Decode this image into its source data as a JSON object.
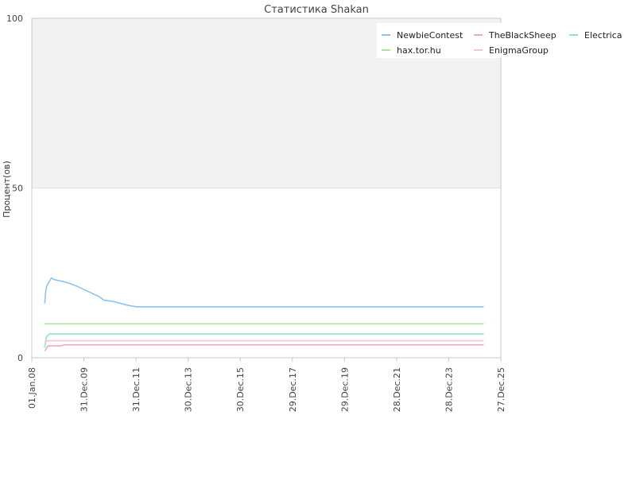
{
  "chart_data": {
    "type": "line",
    "title": "Статистика Shakan",
    "ylabel": "Процент(ов)",
    "xlabel": "",
    "ylim": [
      0,
      100
    ],
    "yticks": [
      "0",
      "50",
      "100"
    ],
    "shaded_band": [
      50,
      100
    ],
    "xlim": [
      "2008-01-01",
      "2025-12-27"
    ],
    "xticks": [
      {
        "date": "2008-01-01",
        "label": "01.Jan.08"
      },
      {
        "date": "2009-12-31",
        "label": "31.Dec.09"
      },
      {
        "date": "2011-12-31",
        "label": "31.Dec.11"
      },
      {
        "date": "2013-12-30",
        "label": "30.Dec.13"
      },
      {
        "date": "2015-12-30",
        "label": "30.Dec.15"
      },
      {
        "date": "2017-12-29",
        "label": "29.Dec.17"
      },
      {
        "date": "2019-12-29",
        "label": "29.Dec.19"
      },
      {
        "date": "2021-12-28",
        "label": "28.Dec.21"
      },
      {
        "date": "2023-12-28",
        "label": "28.Dec.23"
      },
      {
        "date": "2025-12-27",
        "label": "27.Dec.25"
      }
    ],
    "legend_position": "top-right",
    "grid": true,
    "series": [
      {
        "name": "NewbieContest",
        "color": "#8cc3f2",
        "points": [
          [
            "2008-07-01",
            16
          ],
          [
            "2008-07-10",
            19
          ],
          [
            "2008-07-25",
            21
          ],
          [
            "2008-08-20",
            22
          ],
          [
            "2008-10-01",
            23.5
          ],
          [
            "2008-11-15",
            23
          ],
          [
            "2009-03-01",
            22.5
          ],
          [
            "2009-06-01",
            22
          ],
          [
            "2009-10-01",
            21
          ],
          [
            "2010-03-01",
            19.5
          ],
          [
            "2010-08-01",
            18
          ],
          [
            "2010-10-01",
            17
          ],
          [
            "2011-03-01",
            16.5
          ],
          [
            "2011-09-01",
            15.5
          ],
          [
            "2011-12-31",
            15
          ],
          [
            "2025-05-01",
            15
          ]
        ]
      },
      {
        "name": "TheBlackSheep",
        "color": "#f2a7c3",
        "points": [
          [
            "2008-07-01",
            2
          ],
          [
            "2008-08-15",
            3.5
          ],
          [
            "2009-02-01",
            3.5
          ],
          [
            "2009-04-01",
            3.8
          ],
          [
            "2025-05-01",
            3.8
          ]
        ]
      },
      {
        "name": "Electrica",
        "color": "#8ee3c8",
        "points": [
          [
            "2008-07-01",
            3
          ],
          [
            "2008-07-20",
            6
          ],
          [
            "2008-09-01",
            7
          ],
          [
            "2025-05-01",
            7
          ]
        ]
      },
      {
        "name": "hax.tor.hu",
        "color": "#a9e8a0",
        "points": [
          [
            "2008-07-01",
            10
          ],
          [
            "2025-05-01",
            10
          ]
        ]
      },
      {
        "name": "EnigmaGroup",
        "color": "#f7c5d4",
        "points": [
          [
            "2008-07-01",
            4.5
          ],
          [
            "2008-08-01",
            5
          ],
          [
            "2025-05-01",
            5
          ]
        ]
      }
    ]
  }
}
